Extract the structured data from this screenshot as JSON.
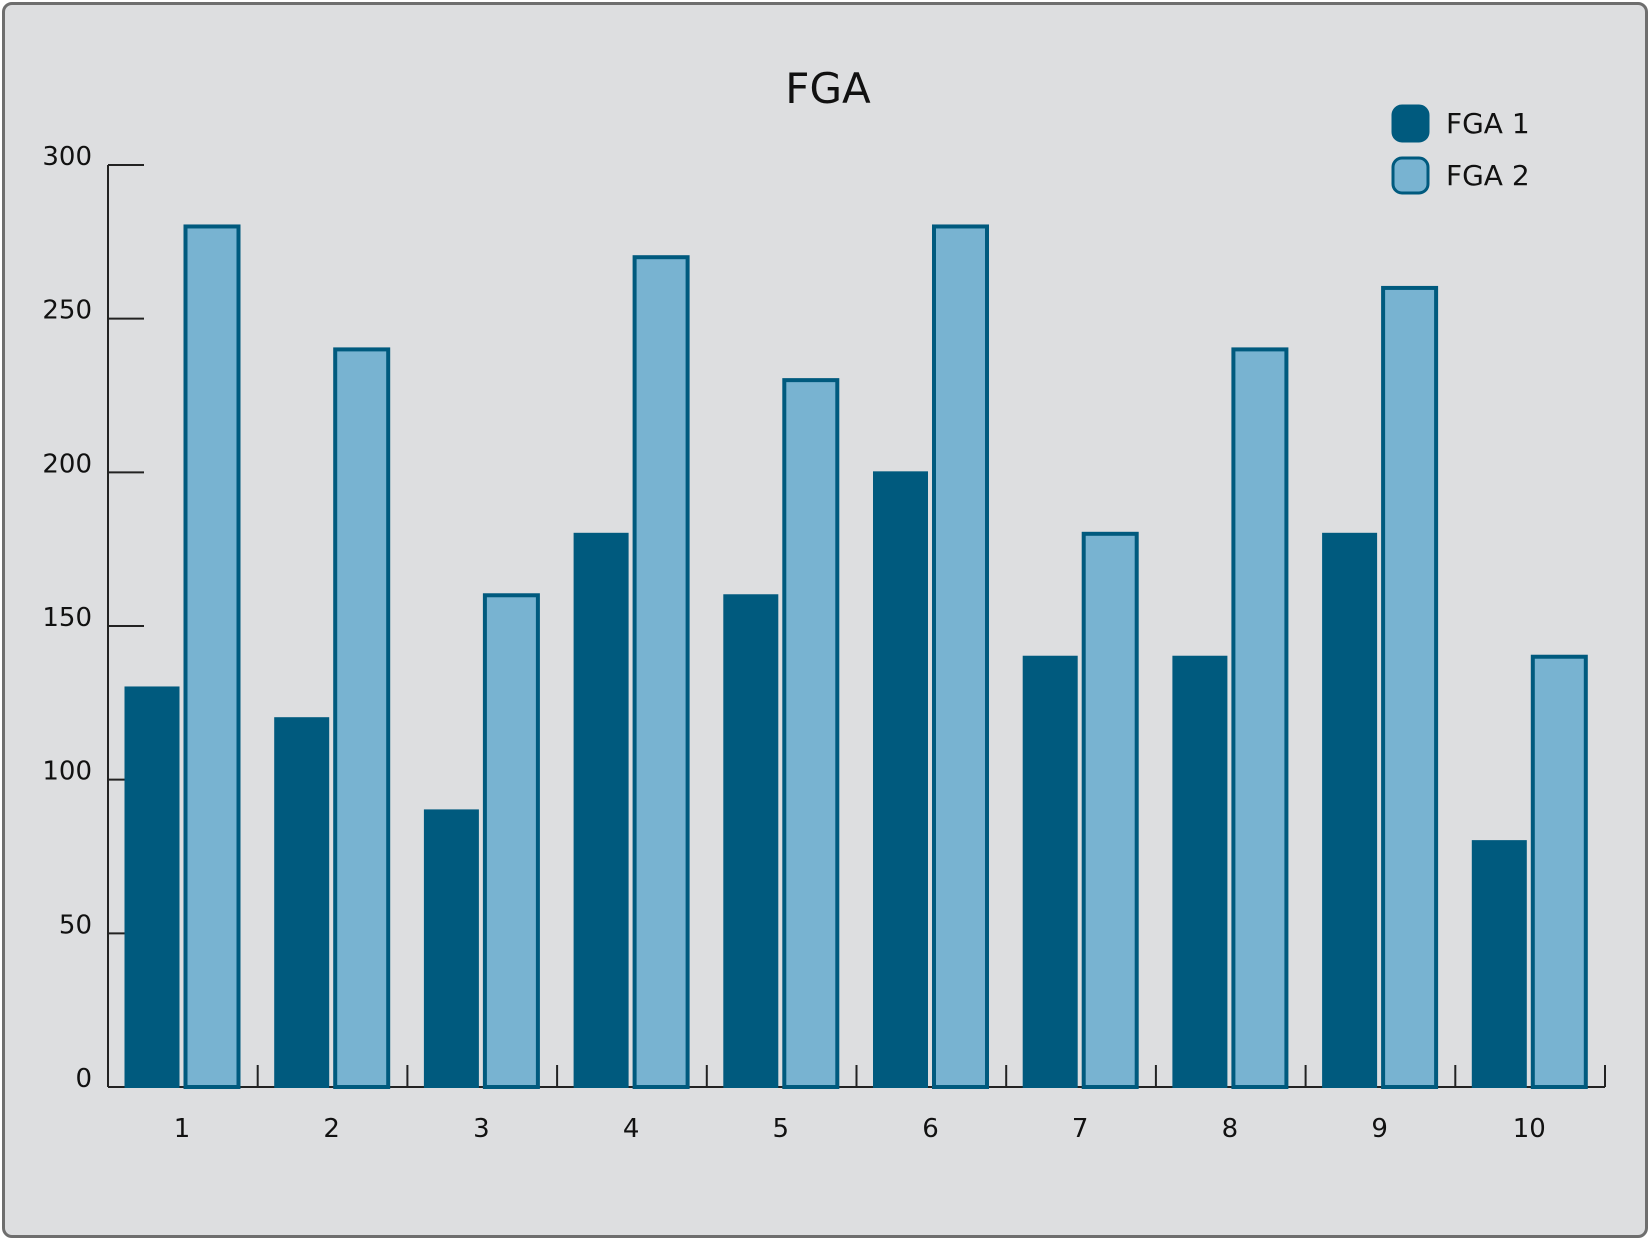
{
  "chart_data": {
    "type": "bar",
    "title": "FGA",
    "xlabel": "",
    "ylabel": "",
    "categories": [
      "1",
      "2",
      "3",
      "4",
      "5",
      "6",
      "7",
      "8",
      "9",
      "10"
    ],
    "series": [
      {
        "name": "FGA 1",
        "values": [
          130,
          120,
          90,
          180,
          160,
          200,
          140,
          140,
          180,
          80
        ],
        "color": "#005a7e",
        "outline": "#005a7e"
      },
      {
        "name": "FGA 2",
        "values": [
          280,
          240,
          160,
          270,
          230,
          280,
          180,
          240,
          260,
          140
        ],
        "color": "#78b3d1",
        "outline": "#005a7e"
      }
    ],
    "ylim": [
      0,
      300
    ],
    "yticks": [
      "0",
      "50",
      "100",
      "150",
      "200",
      "250",
      "300"
    ],
    "grid": false,
    "legend_position": "top-right"
  }
}
